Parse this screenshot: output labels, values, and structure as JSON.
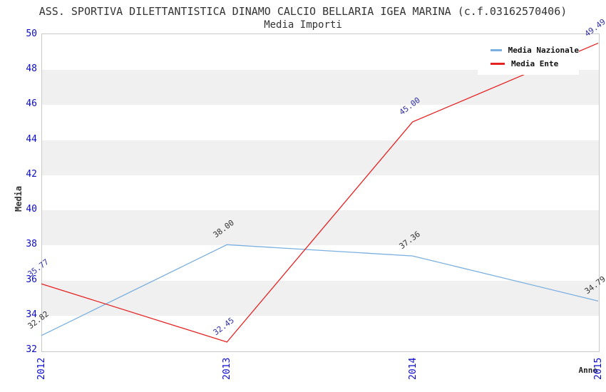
{
  "title": "ASS. SPORTIVA DILETTANTISTICA DINAMO CALCIO BELLARIA IGEA MARINA (c.f.03162570406)",
  "subtitle": "Media Importi",
  "chart_data": {
    "type": "line",
    "x": [
      "2012",
      "2013",
      "2014",
      "2015"
    ],
    "series": [
      {
        "name": "Media Nazionale",
        "values": [
          32.82,
          38.0,
          37.36,
          34.79
        ],
        "point_labels": [
          "32.82",
          "38.00",
          "37.36",
          "34.79"
        ],
        "color": "#7aafe0",
        "label_color": "#333333"
      },
      {
        "name": "Media Ente",
        "values": [
          35.77,
          32.45,
          45.0,
          49.49
        ],
        "point_labels": [
          "35.77",
          "32.45",
          "45.00",
          "49.49"
        ],
        "color": "#e62323",
        "label_color": "#3030a8"
      }
    ],
    "xlabel": "Anno",
    "ylabel": "Media",
    "ylim": [
      32,
      50
    ],
    "y_ticks": [
      50,
      48,
      46,
      44,
      42,
      40,
      38,
      36,
      34,
      32
    ],
    "grid": "alternating-bands",
    "band_color": "#f0f0f0",
    "axis_tick_color": "#0a0ad0",
    "plot_border_color": "#c9c9c9",
    "legend_position": "top-right"
  }
}
